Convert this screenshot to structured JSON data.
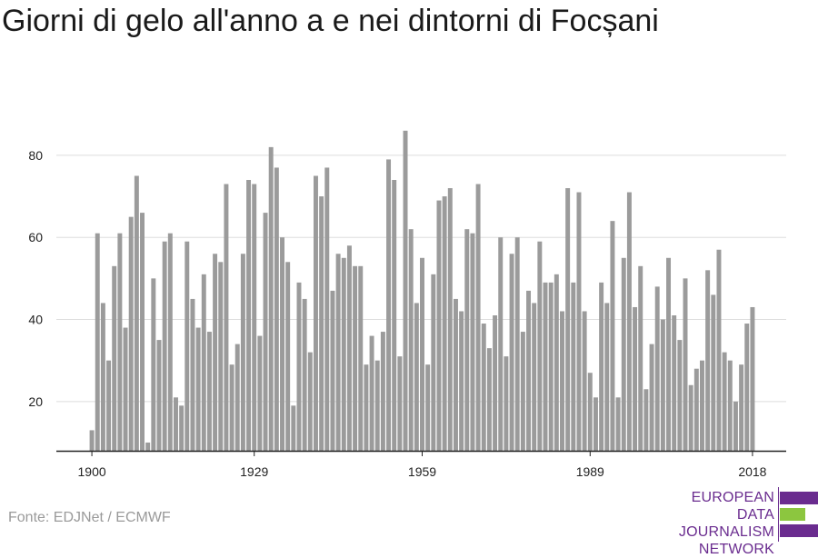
{
  "title": "Giorni di gelo all'anno a e nei dintorni di Focșani",
  "source": "Fonte: EDJNet / ECMWF",
  "logo": {
    "lines": [
      "EUROPEAN",
      "DATA JOURNALISM",
      "NETWORK"
    ]
  },
  "colors": {
    "bar": "#9b9b9b",
    "grid": "#dddddd",
    "axis": "#222222",
    "logo_purple": "#6a2c8f",
    "logo_green": "#8cc63f"
  },
  "chart_data": {
    "type": "bar",
    "title": "Giorni di gelo all'anno a e nei dintorni di Focșani",
    "xlabel": "",
    "ylabel": "",
    "x": [
      1900,
      1901,
      1902,
      1903,
      1904,
      1905,
      1906,
      1907,
      1908,
      1909,
      1910,
      1911,
      1912,
      1913,
      1914,
      1915,
      1916,
      1917,
      1918,
      1919,
      1920,
      1921,
      1922,
      1923,
      1924,
      1925,
      1926,
      1927,
      1928,
      1929,
      1930,
      1931,
      1932,
      1933,
      1934,
      1935,
      1936,
      1937,
      1938,
      1939,
      1940,
      1941,
      1942,
      1943,
      1944,
      1945,
      1946,
      1947,
      1948,
      1949,
      1950,
      1951,
      1952,
      1953,
      1954,
      1955,
      1956,
      1957,
      1958,
      1959,
      1960,
      1961,
      1962,
      1963,
      1964,
      1965,
      1966,
      1967,
      1968,
      1969,
      1970,
      1971,
      1972,
      1973,
      1974,
      1975,
      1976,
      1977,
      1978,
      1979,
      1980,
      1981,
      1982,
      1983,
      1984,
      1985,
      1986,
      1987,
      1988,
      1989,
      1990,
      1991,
      1992,
      1993,
      1994,
      1995,
      1996,
      1997,
      1998,
      1999,
      2000,
      2001,
      2002,
      2003,
      2004,
      2005,
      2006,
      2007,
      2008,
      2009,
      2010,
      2011,
      2012,
      2013,
      2014,
      2015,
      2016,
      2017,
      2018
    ],
    "values": [
      13,
      61,
      44,
      30,
      53,
      61,
      38,
      65,
      75,
      66,
      10,
      50,
      35,
      59,
      61,
      21,
      19,
      59,
      45,
      38,
      51,
      37,
      56,
      54,
      73,
      29,
      34,
      56,
      74,
      73,
      36,
      66,
      82,
      77,
      60,
      54,
      19,
      49,
      45,
      32,
      75,
      70,
      77,
      47,
      56,
      55,
      58,
      53,
      53,
      29,
      36,
      30,
      37,
      79,
      74,
      31,
      86,
      62,
      44,
      55,
      29,
      51,
      69,
      70,
      72,
      45,
      42,
      62,
      61,
      73,
      39,
      33,
      41,
      60,
      31,
      56,
      60,
      37,
      47,
      44,
      59,
      49,
      49,
      51,
      42,
      72,
      49,
      71,
      42,
      27,
      21,
      49,
      44,
      64,
      21,
      55,
      71,
      43,
      53,
      23,
      34,
      48,
      40,
      55,
      41,
      35,
      50,
      24,
      28,
      30,
      52,
      46,
      57,
      32,
      30,
      20,
      29,
      39,
      43
    ],
    "x_ticks": [
      1900,
      1929,
      1959,
      1989,
      2018
    ],
    "y_ticks": [
      20,
      40,
      60,
      80
    ],
    "ylim": [
      8,
      87
    ],
    "grid": true,
    "legend": "none"
  }
}
